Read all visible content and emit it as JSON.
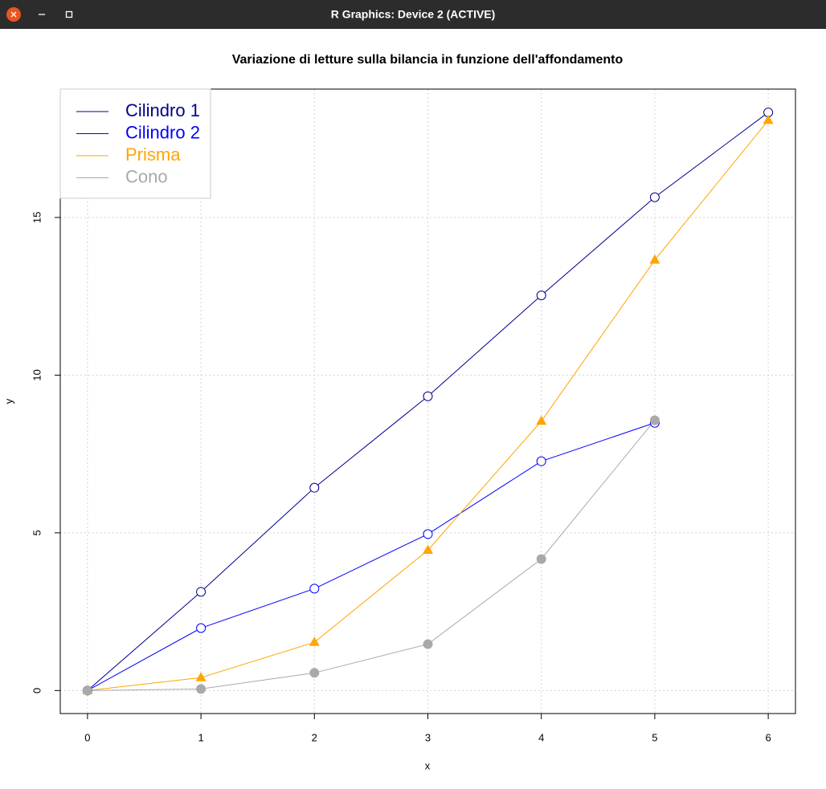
{
  "window": {
    "title": "R Graphics: Device 2 (ACTIVE)"
  },
  "chart_data": {
    "type": "line",
    "title": "Variazione di letture sulla bilancia in funzione dell'affondamento",
    "x_label": "x",
    "y_label": "y",
    "x": [
      0,
      1,
      2,
      3,
      4,
      5,
      6
    ],
    "series": [
      {
        "name": "Cilindro 1",
        "color": "#00008b",
        "marker": "open-circle",
        "values": [
          0,
          3.13,
          6.43,
          9.33,
          12.53,
          15.64,
          18.33
        ]
      },
      {
        "name": "Cilindro 2",
        "color": "#0000ff",
        "marker": "open-circle",
        "values": [
          0,
          1.98,
          3.23,
          4.96,
          7.27,
          8.49,
          null
        ]
      },
      {
        "name": "Prisma",
        "color": "#ffa500",
        "marker": "triangle",
        "values": [
          0,
          0.41,
          1.53,
          4.45,
          8.54,
          13.65,
          18.08
        ]
      },
      {
        "name": "Cono",
        "color": "#a9a9a9",
        "marker": "filled-circle",
        "values": [
          0,
          0.05,
          0.56,
          1.47,
          4.17,
          8.57,
          null
        ]
      }
    ],
    "xlim": [
      -0.24,
      6.24
    ],
    "ylim": [
      -0.73,
      19.07
    ],
    "xticks": [
      0,
      1,
      2,
      3,
      4,
      5,
      6
    ],
    "yticks": [
      0,
      5,
      10,
      15
    ],
    "grid": true,
    "legend": "top-left"
  }
}
